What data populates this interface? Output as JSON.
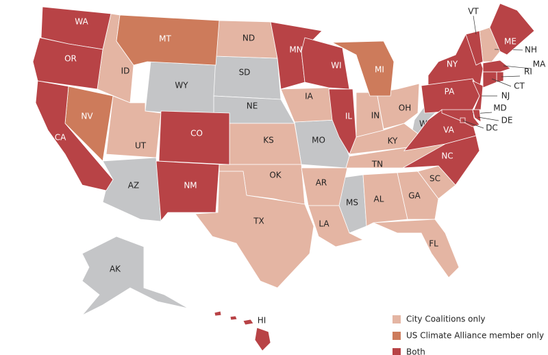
{
  "legend": [
    {
      "label": "City Coalitions only",
      "color": "#e4b5a3",
      "states": [
        "ID",
        "ND",
        "UT",
        "KS",
        "OK",
        "TX",
        "IA",
        "AR",
        "LA",
        "IN",
        "OH",
        "KY",
        "TN",
        "AL",
        "GA",
        "SC",
        "FL",
        "NH"
      ]
    },
    {
      "label": "US Climate Alliance member only",
      "color": "#cd7b5b",
      "states": [
        "MT",
        "NV",
        "MI"
      ]
    },
    {
      "label": "Both",
      "color": "#b84346",
      "states": [
        "WA",
        "OR",
        "CA",
        "CO",
        "NM",
        "MN",
        "WI",
        "IL",
        "NY",
        "PA",
        "VA",
        "NC",
        "ME",
        "VT",
        "MA",
        "RI",
        "CT",
        "NJ",
        "MD",
        "DE",
        "DC",
        "HI"
      ]
    }
  ],
  "no_group": {
    "color": "#c4c5c7",
    "states": [
      "WY",
      "SD",
      "NE",
      "MO",
      "AZ",
      "MS",
      "WV",
      "AK"
    ]
  }
}
